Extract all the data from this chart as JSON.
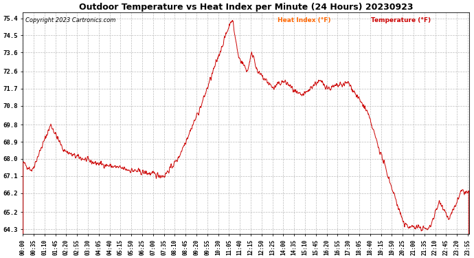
{
  "title": "Outdoor Temperature vs Heat Index per Minute (24 Hours) 20230923",
  "copyright": "Copyright 2023 Cartronics.com",
  "legend_heat_index": "Heat Index (°F)",
  "legend_temperature": "Temperature (°F)",
  "line_color": "#cc0000",
  "heat_index_color": "#ff6600",
  "temperature_color": "#cc0000",
  "background_color": "#ffffff",
  "grid_color": "#bbbbbb",
  "yticks": [
    64.3,
    65.2,
    66.2,
    67.1,
    68.0,
    68.9,
    69.8,
    70.8,
    71.7,
    72.6,
    73.6,
    74.5,
    75.4
  ],
  "ylim": [
    64.05,
    75.7
  ],
  "figsize": [
    6.9,
    3.75
  ],
  "dpi": 100
}
